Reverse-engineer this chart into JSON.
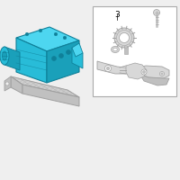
{
  "bg_color": "#efefef",
  "box_bg": "#ffffff",
  "box_edge": "#aaaaaa",
  "cyan_light": "#4dd6f0",
  "cyan_mid": "#28bcd8",
  "cyan_dark": "#1aa0ba",
  "cyan_darker": "#0f8099",
  "gray_light": "#d8d8d8",
  "gray_mid": "#c0c0c0",
  "gray_dark": "#a0a0a0",
  "part_label": "3",
  "line_color": "#888888",
  "dark_line": "#555555"
}
